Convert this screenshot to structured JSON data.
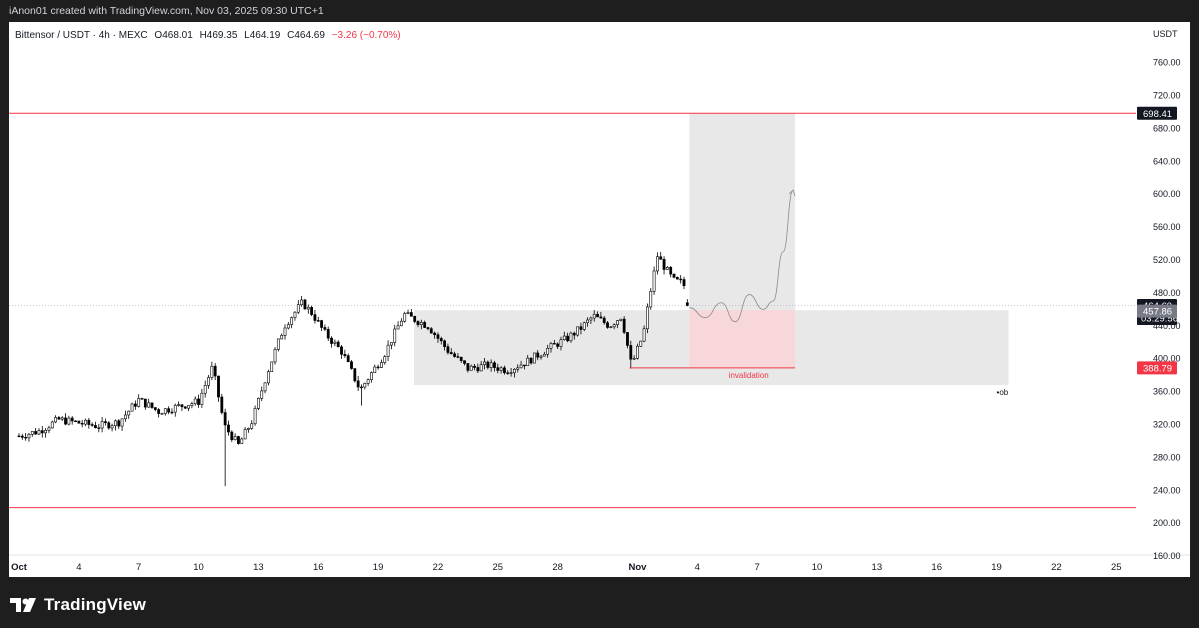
{
  "header": {
    "credit": "iAnon01 created with TradingView.com, Nov 03, 2025 09:30 UTC+1"
  },
  "legend": {
    "symbol": "Bittensor / USDT · 4h · MEXC",
    "open": "O468.01",
    "high": "H469.35",
    "low": "L464.19",
    "close": "C464.69",
    "change": "−3.26 (−0.70%)",
    "change_color": "#f23645"
  },
  "brand": {
    "name": "TradingView"
  },
  "colors": {
    "level_line": "#f23645",
    "up_candle": "#ffffff",
    "down_candle": "#000000",
    "zone": "#e6e6e6",
    "stop_zone": "#f8d7da",
    "current_price_bg": "#131722"
  },
  "chart_data": {
    "type": "candlestick",
    "timeframe": "4h",
    "currency": "USDT",
    "ylim": [
      140,
      760
    ],
    "y_ticks": [
      160,
      200,
      240,
      280,
      320,
      360,
      400,
      440,
      480,
      520,
      560,
      600,
      640,
      680,
      720,
      760
    ],
    "y_tick_labels": [
      "160.00",
      "200.00",
      "240.00",
      "280.00",
      "320.00",
      "360.00",
      "400.00",
      "440.00",
      "480.00",
      "520.00",
      "560.00",
      "600.00",
      "640.00",
      "680.00",
      "720.00",
      "760.00"
    ],
    "x_range_days": [
      0,
      55.5
    ],
    "x_ticks": [
      {
        "day": 0,
        "label": "Oct"
      },
      {
        "day": 3,
        "label": "4"
      },
      {
        "day": 6,
        "label": "7"
      },
      {
        "day": 9,
        "label": "10"
      },
      {
        "day": 12,
        "label": "13"
      },
      {
        "day": 15,
        "label": "16"
      },
      {
        "day": 18,
        "label": "19"
      },
      {
        "day": 21,
        "label": "22"
      },
      {
        "day": 24,
        "label": "25"
      },
      {
        "day": 27,
        "label": "28"
      },
      {
        "day": 31,
        "label": "Nov"
      },
      {
        "day": 34,
        "label": "4"
      },
      {
        "day": 37,
        "label": "7"
      },
      {
        "day": 40,
        "label": "10"
      },
      {
        "day": 43,
        "label": "13"
      },
      {
        "day": 46,
        "label": "16"
      },
      {
        "day": 49,
        "label": "19"
      },
      {
        "day": 52,
        "label": "22"
      },
      {
        "day": 55,
        "label": "25"
      }
    ],
    "horizontal_levels": [
      {
        "price": 698.41,
        "label": "698.41"
      },
      {
        "price": 219
      }
    ],
    "price_labels": [
      {
        "price": 464.69,
        "label": "464.69",
        "countdown": "03:29:56",
        "style": "current"
      },
      {
        "price": 457.86,
        "label": "457.86",
        "style": "gray"
      },
      {
        "price": 388.79,
        "label": "388.79",
        "style": "red"
      }
    ],
    "zones": [
      {
        "name": "ob",
        "label": "ob",
        "day_start": 19.8,
        "day_end": 49.6,
        "top": 459,
        "bottom": 368
      },
      {
        "name": "target",
        "day_start": 33.6,
        "day_end": 38.9,
        "top": 698.41,
        "bottom": 459
      },
      {
        "name": "stop",
        "day_start": 33.6,
        "day_end": 38.9,
        "top": 459,
        "bottom": 388.79
      }
    ],
    "invalidation": {
      "price": 388.79,
      "day_start": 30.6,
      "day_end": 38.9,
      "label": "invalidation"
    },
    "projection_path": [
      [
        33.6,
        462
      ],
      [
        34.4,
        450
      ],
      [
        35.2,
        468
      ],
      [
        35.9,
        445
      ],
      [
        36.6,
        478
      ],
      [
        37.3,
        460
      ],
      [
        37.8,
        470
      ],
      [
        38.3,
        530
      ],
      [
        38.8,
        605
      ]
    ],
    "candles_keypoints": [
      [
        0,
        306
      ],
      [
        1,
        312
      ],
      [
        2,
        326
      ],
      [
        3,
        322
      ],
      [
        4,
        318
      ],
      [
        5,
        323
      ],
      [
        6,
        350
      ],
      [
        7,
        336
      ],
      [
        8,
        342
      ],
      [
        9,
        348
      ],
      [
        9.7,
        390
      ],
      [
        10.3,
        318
      ],
      [
        11,
        295
      ],
      [
        11.7,
        325
      ],
      [
        12.4,
        380
      ],
      [
        13.3,
        440
      ],
      [
        14.2,
        468
      ],
      [
        14.7,
        455
      ],
      [
        15.3,
        432
      ],
      [
        16.2,
        408
      ],
      [
        17.1,
        362
      ],
      [
        17.6,
        380
      ],
      [
        18.3,
        405
      ],
      [
        19.3,
        454
      ],
      [
        20.5,
        440
      ],
      [
        21.5,
        410
      ],
      [
        22.5,
        388
      ],
      [
        23.5,
        392
      ],
      [
        24.5,
        386
      ],
      [
        25.5,
        397
      ],
      [
        26.5,
        412
      ],
      [
        27.5,
        425
      ],
      [
        28.2,
        438
      ],
      [
        28.8,
        452
      ],
      [
        29.6,
        440
      ],
      [
        30.2,
        452
      ],
      [
        30.7,
        392
      ],
      [
        31.3,
        430
      ],
      [
        31.6,
        475
      ],
      [
        32.0,
        525
      ],
      [
        32.4,
        510
      ],
      [
        32.8,
        495
      ],
      [
        33.3,
        492
      ],
      [
        33.6,
        465
      ]
    ],
    "last_candle": {
      "open": 468.01,
      "high": 469.35,
      "low": 464.19,
      "close": 464.69
    }
  }
}
